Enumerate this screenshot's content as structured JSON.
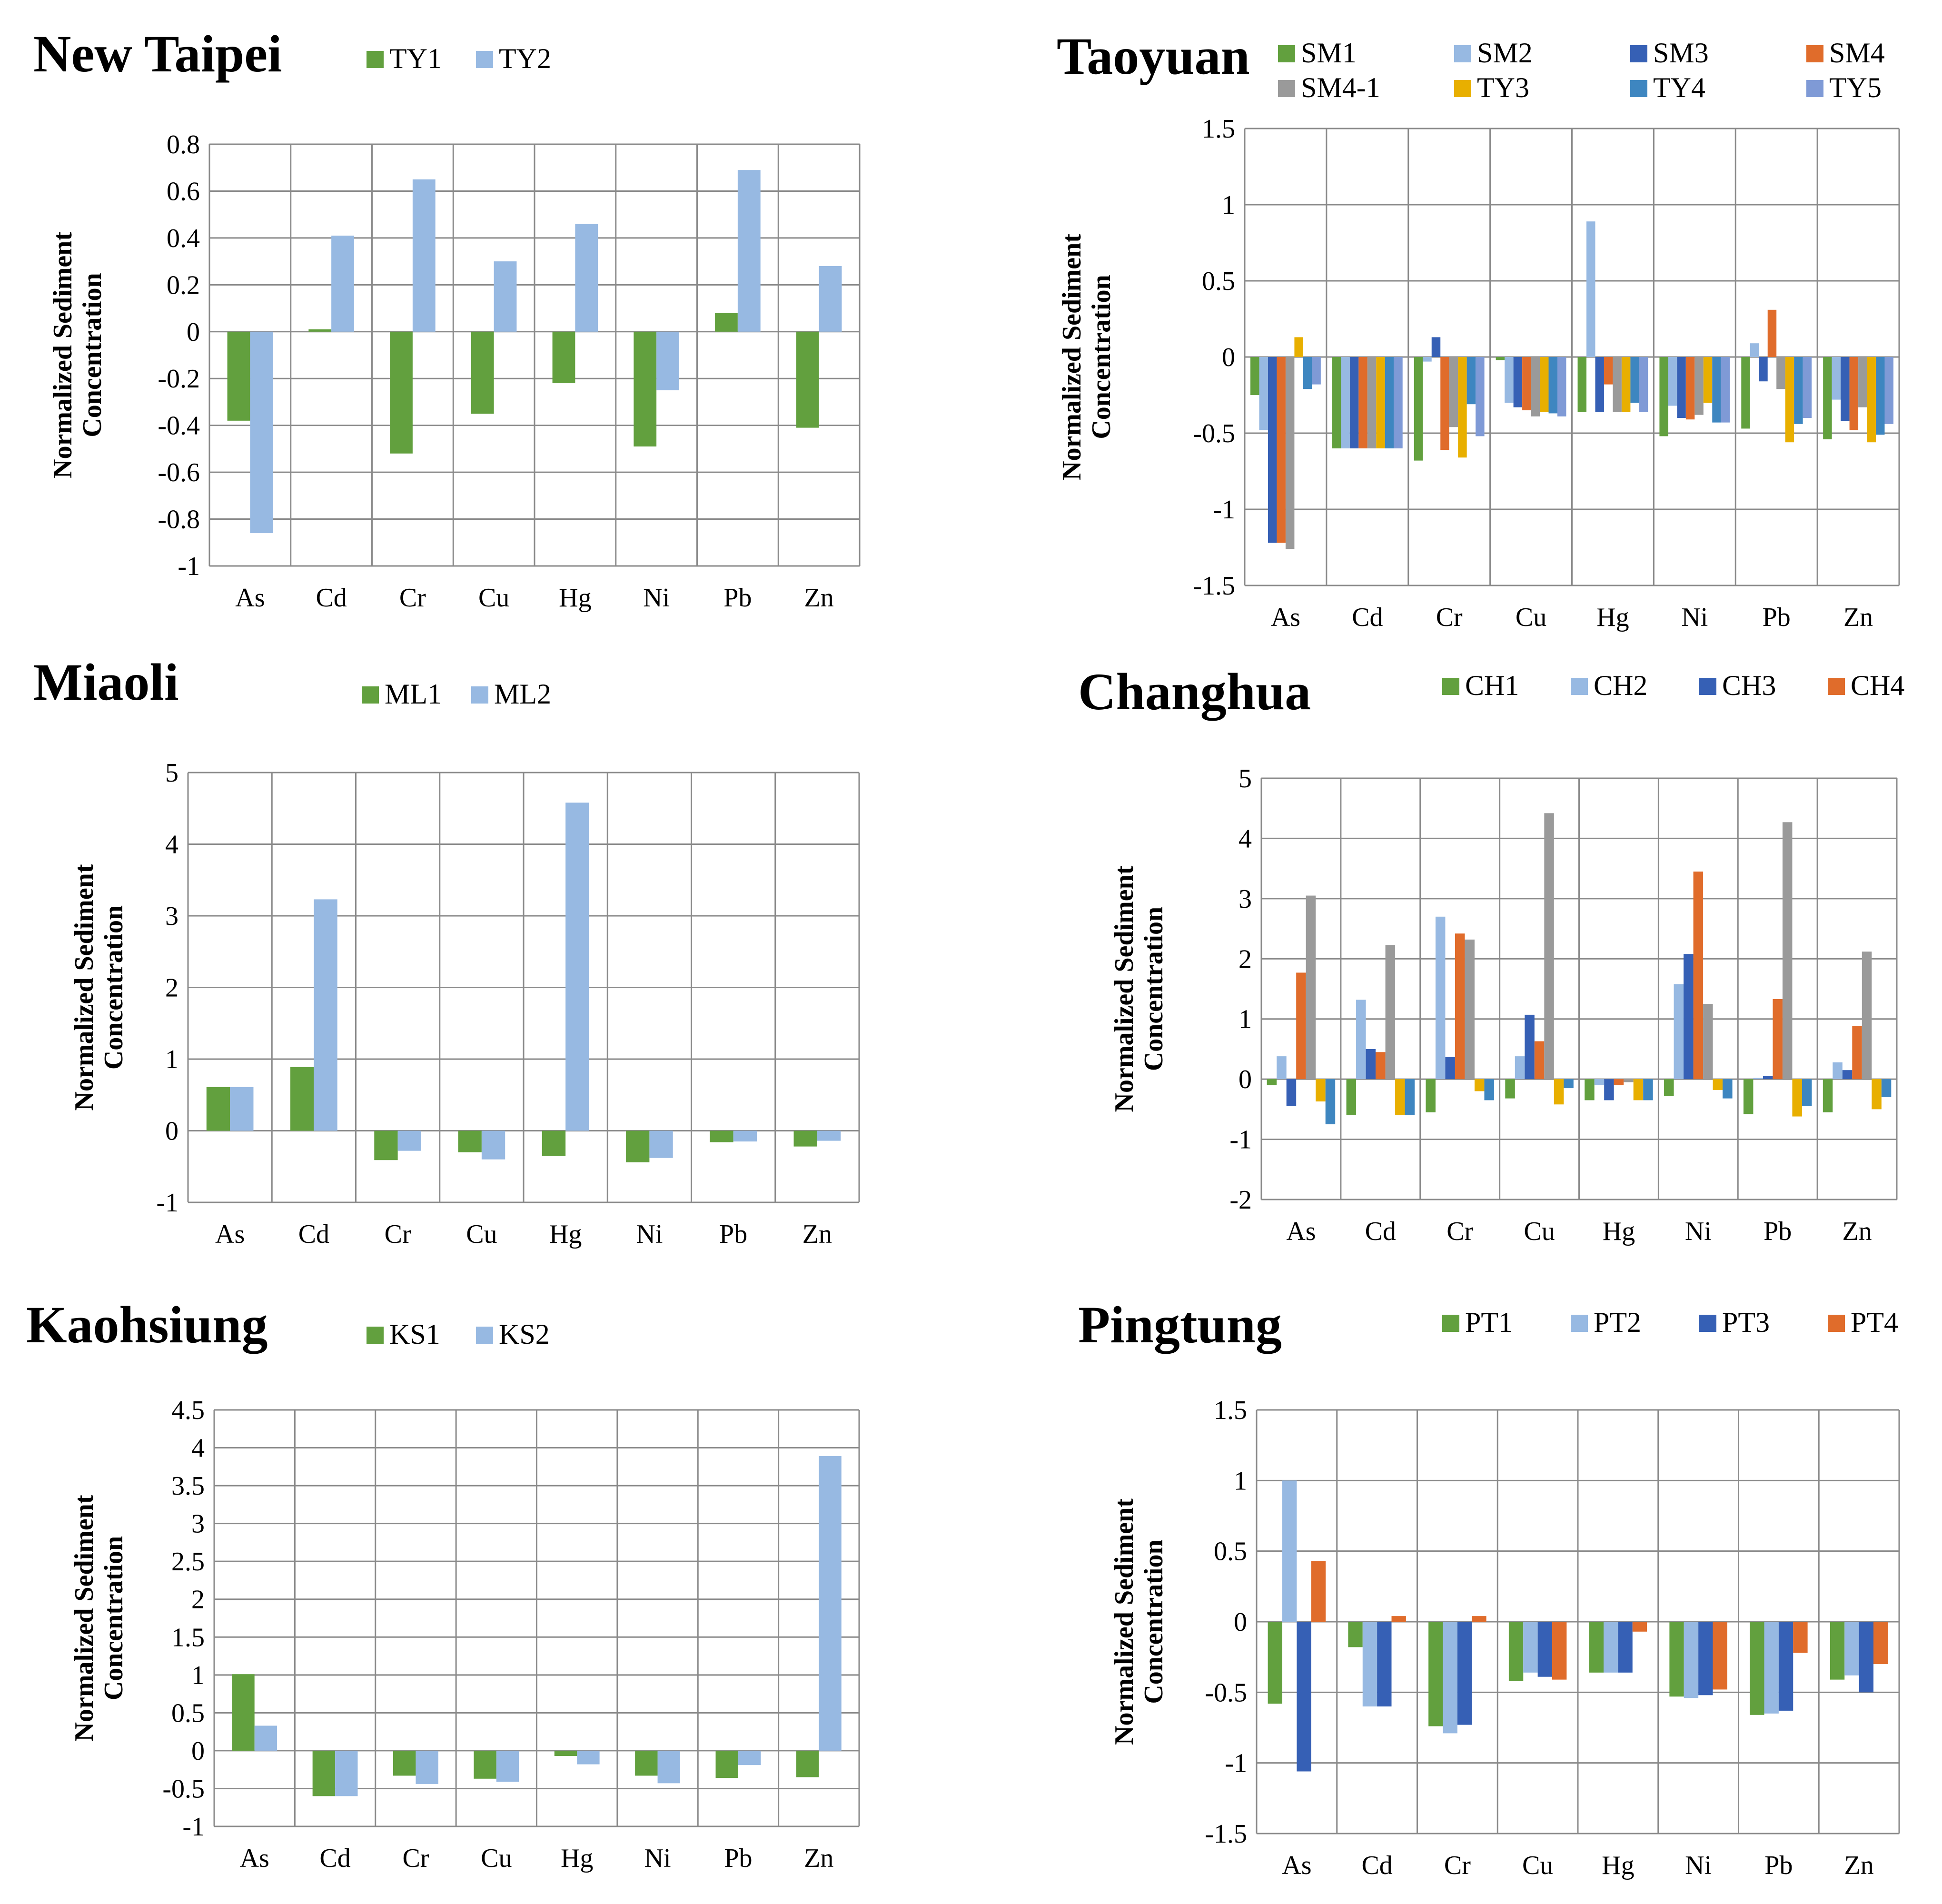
{
  "colors": {
    "green": "#62A03E",
    "lightblue": "#97B9E2",
    "darkblue": "#3660B5",
    "orange": "#E06C2B",
    "gray": "#9A9A9A",
    "yellow": "#E8AF00",
    "steelblue": "#3E86C0",
    "periwinkle": "#7F9AD6"
  },
  "chart_data": [
    {
      "type": "bar",
      "title": "New Taipei",
      "ylabel": "Normalized Sediment Concentration",
      "categories": [
        "As",
        "Cd",
        "Cr",
        "Cu",
        "Hg",
        "Ni",
        "Pb",
        "Zn"
      ],
      "ylim": [
        -1,
        0.8
      ],
      "yticks": [
        0.8,
        0.6,
        0.4,
        0.2,
        0,
        -0.2,
        -0.4,
        -0.6,
        -0.8,
        -1
      ],
      "ytick_labels": [
        "0.8",
        "0.6",
        "0.4",
        "0.2",
        "0",
        "-0.2",
        "-0.4",
        "-0.6",
        "-0.8",
        "-1"
      ],
      "series": [
        {
          "name": "TY1",
          "color": "green",
          "values": [
            -0.38,
            0.01,
            -0.52,
            -0.35,
            -0.22,
            -0.49,
            0.08,
            -0.41
          ]
        },
        {
          "name": "TY2",
          "color": "lightblue",
          "values": [
            -0.86,
            0.41,
            0.65,
            0.3,
            0.46,
            -0.25,
            0.69,
            0.28
          ]
        }
      ]
    },
    {
      "type": "bar",
      "title": "Taoyuan",
      "ylabel": "Normalized Sediment Concentration",
      "categories": [
        "As",
        "Cd",
        "Cr",
        "Cu",
        "Hg",
        "Ni",
        "Pb",
        "Zn"
      ],
      "ylim": [
        -1.5,
        1.5
      ],
      "yticks": [
        1.5,
        1,
        0.5,
        0,
        -0.5,
        -1,
        -1.5
      ],
      "ytick_labels": [
        "1.5",
        "1",
        "0.5",
        "0",
        "-0.5",
        "-1",
        "-1.5"
      ],
      "series": [
        {
          "name": "SM1",
          "color": "green",
          "values": [
            -0.25,
            -0.6,
            -0.68,
            -0.02,
            -0.36,
            -0.52,
            -0.47,
            -0.54
          ]
        },
        {
          "name": "SM2",
          "color": "lightblue",
          "values": [
            -0.48,
            -0.6,
            -0.03,
            -0.3,
            0.89,
            -0.32,
            0.09,
            -0.28
          ]
        },
        {
          "name": "SM3",
          "color": "darkblue",
          "values": [
            -1.22,
            -0.6,
            0.13,
            -0.33,
            -0.36,
            -0.4,
            -0.16,
            -0.42
          ]
        },
        {
          "name": "SM4",
          "color": "orange",
          "values": [
            -1.22,
            -0.6,
            -0.61,
            -0.35,
            -0.18,
            -0.41,
            0.31,
            -0.48
          ]
        },
        {
          "name": "SM4-1",
          "color": "gray",
          "values": [
            -1.26,
            -0.6,
            -0.46,
            -0.39,
            -0.36,
            -0.38,
            -0.21,
            -0.33
          ]
        },
        {
          "name": "TY3",
          "color": "yellow",
          "values": [
            0.13,
            -0.6,
            -0.66,
            -0.36,
            -0.36,
            -0.3,
            -0.56,
            -0.56
          ]
        },
        {
          "name": "TY4",
          "color": "steelblue",
          "values": [
            -0.21,
            -0.6,
            -0.31,
            -0.37,
            -0.3,
            -0.43,
            -0.44,
            -0.51
          ]
        },
        {
          "name": "TY5",
          "color": "periwinkle",
          "values": [
            -0.18,
            -0.6,
            -0.52,
            -0.39,
            -0.36,
            -0.43,
            -0.4,
            -0.44
          ]
        }
      ]
    },
    {
      "type": "bar",
      "title": "Miaoli",
      "ylabel": "Normalized Sediment Concentration",
      "categories": [
        "As",
        "Cd",
        "Cr",
        "Cu",
        "Hg",
        "Ni",
        "Pb",
        "Zn"
      ],
      "ylim": [
        -1,
        5
      ],
      "yticks": [
        5,
        4,
        3,
        2,
        1,
        0,
        -1
      ],
      "ytick_labels": [
        "5",
        "4",
        "3",
        "2",
        "1",
        "0",
        "-1"
      ],
      "series": [
        {
          "name": "ML1",
          "color": "green",
          "values": [
            0.61,
            0.89,
            -0.41,
            -0.3,
            -0.35,
            -0.44,
            -0.16,
            -0.22
          ]
        },
        {
          "name": "ML2",
          "color": "lightblue",
          "values": [
            0.61,
            3.23,
            -0.28,
            -0.4,
            4.58,
            -0.38,
            -0.15,
            -0.14
          ]
        }
      ]
    },
    {
      "type": "bar",
      "title": "Changhua",
      "ylabel": "Normalized Sediment Concentration",
      "categories": [
        "As",
        "Cd",
        "Cr",
        "Cu",
        "Hg",
        "Ni",
        "Pb",
        "Zn"
      ],
      "ylim": [
        -2,
        5
      ],
      "yticks": [
        5,
        4,
        3,
        2,
        1,
        0,
        -1,
        -2
      ],
      "ytick_labels": [
        "5",
        "4",
        "3",
        "2",
        "1",
        "0",
        "-1",
        "-2"
      ],
      "legend_shown": [
        "CH1",
        "CH2",
        "CH3",
        "CH4"
      ],
      "series": [
        {
          "name": "CH1",
          "color": "green",
          "values": [
            -0.1,
            -0.6,
            -0.55,
            -0.32,
            -0.35,
            -0.28,
            -0.58,
            -0.55
          ]
        },
        {
          "name": "CH2",
          "color": "lightblue",
          "values": [
            0.38,
            1.32,
            2.7,
            0.38,
            -0.1,
            1.58,
            0.02,
            0.28
          ]
        },
        {
          "name": "CH3",
          "color": "darkblue",
          "values": [
            -0.45,
            0.5,
            0.37,
            1.07,
            -0.35,
            2.08,
            0.05,
            0.15
          ]
        },
        {
          "name": "CH4",
          "color": "orange",
          "values": [
            1.77,
            0.45,
            2.42,
            0.63,
            -0.1,
            3.45,
            1.33,
            0.88
          ]
        },
        {
          "name": "",
          "color": "gray",
          "values": [
            3.05,
            2.23,
            2.32,
            4.42,
            -0.05,
            1.25,
            4.27,
            2.12
          ]
        },
        {
          "name": "",
          "color": "yellow",
          "values": [
            -0.37,
            -0.6,
            -0.2,
            -0.42,
            -0.35,
            -0.18,
            -0.62,
            -0.5
          ]
        },
        {
          "name": "",
          "color": "steelblue",
          "values": [
            -0.75,
            -0.6,
            -0.35,
            -0.15,
            -0.35,
            -0.32,
            -0.45,
            -0.3
          ]
        }
      ]
    },
    {
      "type": "bar",
      "title": "Kaohsiung",
      "ylabel": "Normalized Sediment Concentration",
      "categories": [
        "As",
        "Cd",
        "Cr",
        "Cu",
        "Hg",
        "Ni",
        "Pb",
        "Zn"
      ],
      "ylim": [
        -1,
        4.5
      ],
      "yticks": [
        4.5,
        4,
        3.5,
        3,
        2.5,
        2,
        1.5,
        1,
        0.5,
        0,
        -0.5,
        -1
      ],
      "ytick_labels": [
        "4.5",
        "4",
        "3.5",
        "3",
        "2.5",
        "2",
        "1.5",
        "1",
        "0.5",
        "0",
        "-0.5",
        "-1"
      ],
      "series": [
        {
          "name": "KS1",
          "color": "green",
          "values": [
            1.01,
            -0.6,
            -0.33,
            -0.37,
            -0.07,
            -0.33,
            -0.36,
            -0.35
          ]
        },
        {
          "name": "KS2",
          "color": "lightblue",
          "values": [
            0.33,
            -0.6,
            -0.44,
            -0.41,
            -0.18,
            -0.43,
            -0.19,
            3.89
          ]
        }
      ]
    },
    {
      "type": "bar",
      "title": "Pingtung",
      "ylabel": "Normalized Sediment Concentration",
      "categories": [
        "As",
        "Cd",
        "Cr",
        "Cu",
        "Hg",
        "Ni",
        "Pb",
        "Zn"
      ],
      "ylim": [
        -1.5,
        1.5
      ],
      "yticks": [
        1.5,
        1,
        0.5,
        0,
        -0.5,
        -1,
        -1.5
      ],
      "ytick_labels": [
        "1.5",
        "1",
        "0.5",
        "0",
        "-0.5",
        "-1",
        "-1.5"
      ],
      "series": [
        {
          "name": "PT1",
          "color": "green",
          "values": [
            -0.58,
            -0.18,
            -0.74,
            -0.42,
            -0.36,
            -0.53,
            -0.66,
            -0.41
          ]
        },
        {
          "name": "PT2",
          "color": "lightblue",
          "values": [
            1.0,
            -0.6,
            -0.79,
            -0.36,
            -0.36,
            -0.54,
            -0.65,
            -0.38
          ]
        },
        {
          "name": "PT3",
          "color": "darkblue",
          "values": [
            -1.06,
            -0.6,
            -0.73,
            -0.39,
            -0.36,
            -0.52,
            -0.63,
            -0.5
          ]
        },
        {
          "name": "PT4",
          "color": "orange",
          "values": [
            0.43,
            0.04,
            0.04,
            -0.41,
            -0.07,
            -0.48,
            -0.22,
            -0.3
          ]
        }
      ]
    }
  ]
}
